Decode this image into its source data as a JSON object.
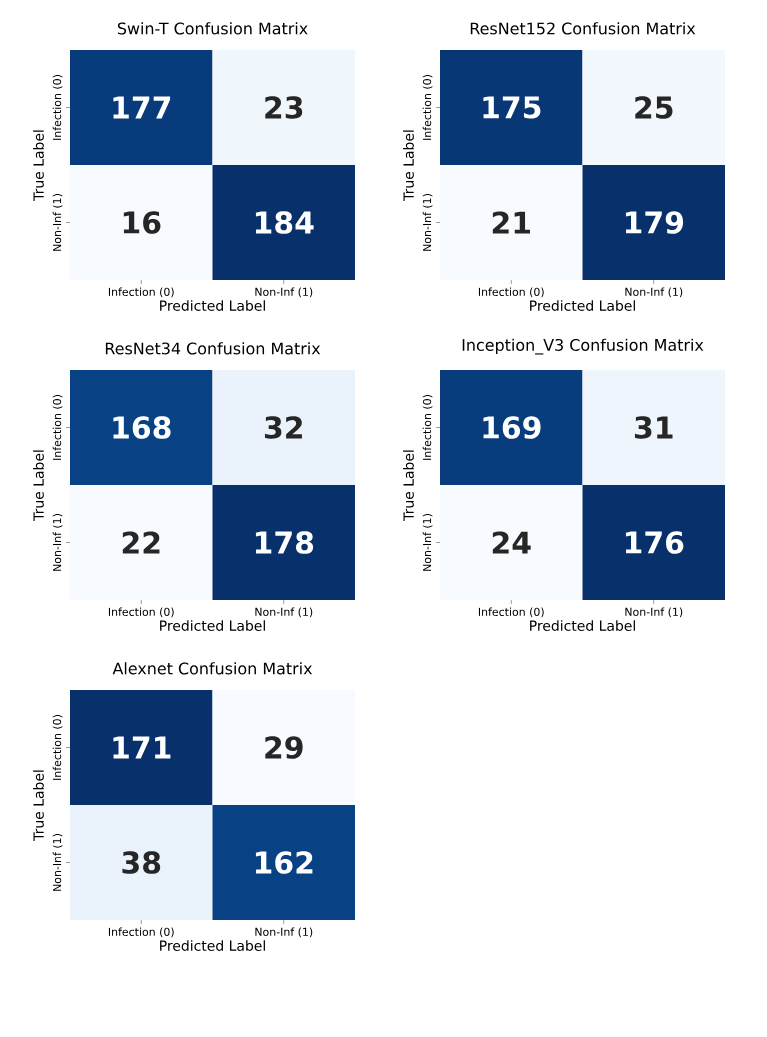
{
  "chart_data": [
    {
      "type": "heatmap",
      "title": "Swin-T Confusion Matrix",
      "xlabel": "Predicted Label",
      "ylabel": "True Label",
      "categories": [
        "Infection (0)",
        "Non-Inf (1)"
      ],
      "y_categories": [
        "Infection (0)",
        "Non-Inf (1)"
      ],
      "cells": [
        [
          177,
          23
        ],
        [
          16,
          184
        ]
      ],
      "data_labels": true
    },
    {
      "type": "heatmap",
      "title": "ResNet152 Confusion Matrix",
      "xlabel": "Predicted Label",
      "ylabel": "True Label",
      "categories": [
        "Infection (0)",
        "Non-Inf (1)"
      ],
      "y_categories": [
        "Infection (0)",
        "Non-Inf (1)"
      ],
      "cells": [
        [
          175,
          25
        ],
        [
          21,
          179
        ]
      ],
      "data_labels": true
    },
    {
      "type": "heatmap",
      "title": "ResNet34 Confusion Matrix",
      "xlabel": "Predicted Label",
      "ylabel": "True Label",
      "categories": [
        "Infection (0)",
        "Non-Inf (1)"
      ],
      "y_categories": [
        "Infection (0)",
        "Non-Inf (1)"
      ],
      "cells": [
        [
          168,
          32
        ],
        [
          22,
          178
        ]
      ],
      "data_labels": true
    },
    {
      "type": "heatmap",
      "title": "Inception_V3 Confusion Matrix",
      "xlabel": "Predicted Label",
      "ylabel": "True Label",
      "categories": [
        "Infection (0)",
        "Non-Inf (1)"
      ],
      "y_categories": [
        "Infection (0)",
        "Non-Inf (1)"
      ],
      "cells": [
        [
          169,
          31
        ],
        [
          24,
          176
        ]
      ],
      "data_labels": true
    },
    {
      "type": "heatmap",
      "title": "Alexnet Confusion Matrix",
      "xlabel": "Predicted Label",
      "ylabel": "True Label",
      "categories": [
        "Infection (0)",
        "Non-Inf (1)"
      ],
      "y_categories": [
        "Infection (0)",
        "Non-Inf (1)"
      ],
      "cells": [
        [
          171,
          29
        ],
        [
          38,
          162
        ]
      ],
      "data_labels": true
    }
  ]
}
